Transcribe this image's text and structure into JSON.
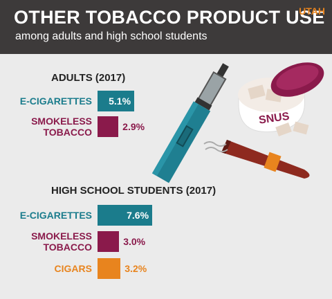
{
  "header": {
    "title": "OTHER TOBACCO PRODUCT USE",
    "subtitle": "among adults and high school students",
    "tag": "UTAH",
    "illustration_text": "SNUS"
  },
  "chart_data": [
    {
      "type": "bar",
      "title": "ADULTS (2017)",
      "categories": [
        "E-CIGARETTES",
        "SMOKELESS TOBACCO"
      ],
      "values": [
        5.1,
        2.9
      ],
      "value_labels": [
        "5.1%",
        "2.9%"
      ],
      "colors": [
        "#1b7c8c",
        "#8a1a4b"
      ]
    },
    {
      "type": "bar",
      "title": "HIGH SCHOOL STUDENTS (2017)",
      "categories": [
        "E-CIGARETTES",
        "SMOKELESS TOBACCO",
        "CIGARS"
      ],
      "values": [
        7.6,
        3.0,
        3.2
      ],
      "value_labels": [
        "7.6%",
        "3.0%",
        "3.2%"
      ],
      "colors": [
        "#1b7c8c",
        "#8a1a4b",
        "#e8841e"
      ]
    }
  ]
}
